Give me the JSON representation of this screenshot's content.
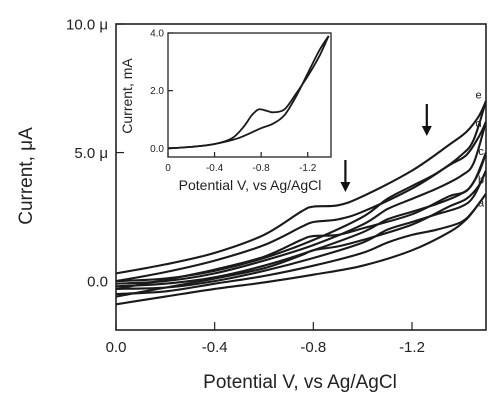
{
  "chart_data": [
    {
      "type": "line",
      "xlabel": "Potential V, vs Ag/AgCl",
      "ylabel": "Current, μA",
      "xlim": [
        0.0,
        -1.5
      ],
      "ylim": [
        -1.9,
        10.0
      ],
      "x_ticks": [
        0.0,
        -0.4,
        -0.8,
        -1.2
      ],
      "x_tick_labels": [
        "0.0",
        "-0.4",
        "-0.8",
        "-1.2"
      ],
      "y_ticks": [
        0.0,
        5.0,
        10.0
      ],
      "y_tick_labels": [
        "0.0",
        "5.0 μ",
        "10.0 μ"
      ],
      "annotations": [
        "a",
        "b",
        "c",
        "d",
        "e"
      ],
      "arrows_at_x": [
        -0.93,
        -1.26
      ],
      "series": [
        {
          "label": "a",
          "forward": [
            [
              0.0,
              -0.9
            ],
            [
              -0.2,
              -0.6
            ],
            [
              -0.4,
              -0.3
            ],
            [
              -0.6,
              -0.05
            ],
            [
              -0.8,
              0.25
            ],
            [
              -1.0,
              0.6
            ],
            [
              -1.2,
              1.2
            ],
            [
              -1.35,
              1.9
            ],
            [
              -1.42,
              2.4
            ],
            [
              -1.47,
              3.0
            ],
            [
              -1.5,
              3.4
            ]
          ],
          "reverse": [
            [
              -1.5,
              3.4
            ],
            [
              -1.45,
              2.75
            ],
            [
              -1.4,
              2.3
            ],
            [
              -1.3,
              2.0
            ],
            [
              -1.2,
              1.8
            ],
            [
              -1.1,
              1.5
            ],
            [
              -1.0,
              1.1
            ],
            [
              -0.8,
              0.6
            ],
            [
              -0.6,
              0.2
            ],
            [
              -0.4,
              -0.1
            ],
            [
              -0.2,
              -0.4
            ],
            [
              0.0,
              -0.5
            ]
          ]
        },
        {
          "label": "b",
          "forward": [
            [
              0.0,
              -0.6
            ],
            [
              -0.2,
              -0.25
            ],
            [
              -0.4,
              0.1
            ],
            [
              -0.6,
              0.5
            ],
            [
              -0.75,
              1.0
            ],
            [
              -0.8,
              1.2
            ],
            [
              -0.9,
              1.35
            ],
            [
              -1.0,
              1.6
            ],
            [
              -1.2,
              2.2
            ],
            [
              -1.35,
              2.9
            ],
            [
              -1.42,
              3.2
            ],
            [
              -1.47,
              3.7
            ],
            [
              -1.5,
              4.3
            ]
          ],
          "reverse": [
            [
              -1.5,
              4.3
            ],
            [
              -1.45,
              3.3
            ],
            [
              -1.4,
              2.9
            ],
            [
              -1.3,
              2.6
            ],
            [
              -1.2,
              2.3
            ],
            [
              -1.1,
              2.0
            ],
            [
              -1.0,
              1.5
            ],
            [
              -0.8,
              0.9
            ],
            [
              -0.6,
              0.4
            ],
            [
              -0.4,
              0.0
            ],
            [
              -0.2,
              -0.25
            ],
            [
              0.0,
              -0.3
            ]
          ]
        },
        {
          "label": "c",
          "forward": [
            [
              0.0,
              -0.3
            ],
            [
              -0.2,
              0.05
            ],
            [
              -0.4,
              0.45
            ],
            [
              -0.6,
              0.95
            ],
            [
              -0.75,
              1.6
            ],
            [
              -0.8,
              1.75
            ],
            [
              -0.9,
              1.8
            ],
            [
              -1.0,
              2.05
            ],
            [
              -1.2,
              2.6
            ],
            [
              -1.35,
              3.3
            ],
            [
              -1.42,
              3.5
            ],
            [
              -1.47,
              4.2
            ],
            [
              -1.5,
              5.0
            ]
          ],
          "reverse": [
            [
              -1.5,
              5.0
            ],
            [
              -1.45,
              3.85
            ],
            [
              -1.4,
              3.4
            ],
            [
              -1.3,
              3.0
            ],
            [
              -1.2,
              2.7
            ],
            [
              -1.1,
              2.4
            ],
            [
              -1.0,
              1.9
            ],
            [
              -0.8,
              1.2
            ],
            [
              -0.6,
              0.6
            ],
            [
              -0.4,
              0.15
            ],
            [
              -0.2,
              -0.1
            ],
            [
              0.0,
              -0.2
            ]
          ]
        },
        {
          "label": "d",
          "forward": [
            [
              0.0,
              0.0
            ],
            [
              -0.2,
              0.35
            ],
            [
              -0.4,
              0.8
            ],
            [
              -0.6,
              1.4
            ],
            [
              -0.75,
              2.1
            ],
            [
              -0.8,
              2.3
            ],
            [
              -0.9,
              2.4
            ],
            [
              -1.0,
              2.7
            ],
            [
              -1.2,
              3.6
            ],
            [
              -1.35,
              4.5
            ],
            [
              -1.42,
              4.9
            ],
            [
              -1.47,
              5.6
            ],
            [
              -1.5,
              6.2
            ]
          ],
          "reverse": [
            [
              -1.5,
              6.2
            ],
            [
              -1.45,
              4.6
            ],
            [
              -1.4,
              4.1
            ],
            [
              -1.3,
              3.6
            ],
            [
              -1.2,
              3.2
            ],
            [
              -1.1,
              2.8
            ],
            [
              -1.0,
              2.2
            ],
            [
              -0.8,
              1.4
            ],
            [
              -0.6,
              0.8
            ],
            [
              -0.4,
              0.3
            ],
            [
              -0.2,
              0.0
            ],
            [
              0.0,
              -0.1
            ]
          ]
        },
        {
          "label": "e",
          "forward": [
            [
              0.0,
              0.3
            ],
            [
              -0.2,
              0.65
            ],
            [
              -0.4,
              1.1
            ],
            [
              -0.6,
              1.8
            ],
            [
              -0.75,
              2.7
            ],
            [
              -0.8,
              2.9
            ],
            [
              -0.9,
              2.95
            ],
            [
              -1.0,
              3.3
            ],
            [
              -1.2,
              4.3
            ],
            [
              -1.35,
              5.3
            ],
            [
              -1.42,
              5.8
            ],
            [
              -1.47,
              6.4
            ],
            [
              -1.5,
              7.0
            ]
          ],
          "reverse": [
            [
              -1.5,
              7.0
            ],
            [
              -1.45,
              5.5
            ],
            [
              -1.4,
              4.9
            ],
            [
              -1.3,
              4.2
            ],
            [
              -1.2,
              3.7
            ],
            [
              -1.1,
              3.2
            ],
            [
              -1.0,
              2.5
            ],
            [
              -0.8,
              1.6
            ],
            [
              -0.6,
              0.9
            ],
            [
              -0.4,
              0.4
            ],
            [
              -0.2,
              0.1
            ],
            [
              0.0,
              0.0
            ]
          ]
        }
      ]
    },
    {
      "type": "line",
      "inset": true,
      "xlabel": "Potential V, vs Ag/AgCl",
      "ylabel": "Current, mA",
      "xlim": [
        0.0,
        -1.4
      ],
      "ylim": [
        -0.3,
        4.0
      ],
      "x_ticks": [
        0.0,
        -0.4,
        -0.8,
        -1.2
      ],
      "x_tick_labels": [
        "0",
        "-0.4",
        "-0.8",
        "-1.2"
      ],
      "y_ticks": [
        0.0,
        2.0,
        4.0
      ],
      "y_tick_labels": [
        "0.0",
        "2.0",
        "4.0"
      ],
      "series": [
        {
          "forward": [
            [
              0.0,
              0.0
            ],
            [
              -0.2,
              0.05
            ],
            [
              -0.4,
              0.15
            ],
            [
              -0.55,
              0.35
            ],
            [
              -0.65,
              0.75
            ],
            [
              -0.72,
              1.15
            ],
            [
              -0.78,
              1.35
            ],
            [
              -0.85,
              1.3
            ],
            [
              -0.9,
              1.25
            ],
            [
              -1.0,
              1.35
            ],
            [
              -1.1,
              1.9
            ],
            [
              -1.2,
              2.5
            ],
            [
              -1.3,
              3.2
            ],
            [
              -1.38,
              3.9
            ]
          ],
          "reverse": [
            [
              -1.38,
              3.9
            ],
            [
              -1.3,
              3.4
            ],
            [
              -1.2,
              2.6
            ],
            [
              -1.1,
              1.8
            ],
            [
              -1.0,
              1.15
            ],
            [
              -0.9,
              0.85
            ],
            [
              -0.8,
              0.7
            ],
            [
              -0.6,
              0.35
            ],
            [
              -0.4,
              0.15
            ],
            [
              -0.2,
              0.05
            ],
            [
              0.0,
              0.0
            ]
          ]
        }
      ]
    }
  ]
}
